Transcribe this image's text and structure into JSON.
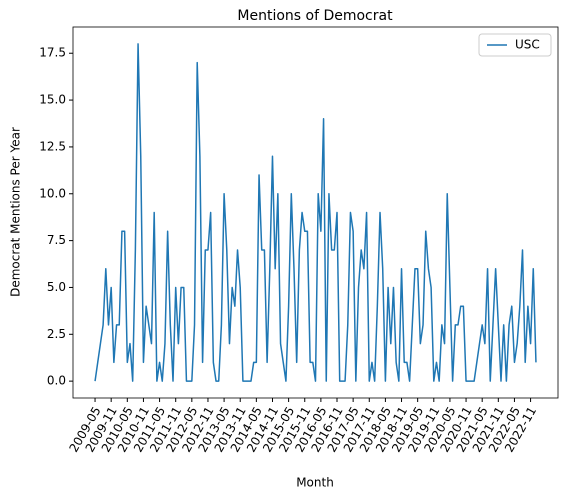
{
  "chart_data": {
    "type": "line",
    "title": "Mentions of Democrat",
    "xlabel": "Month",
    "ylabel": "Democrat Mentions Per Year",
    "categories": [
      "2009-05",
      null,
      null,
      null,
      null,
      null,
      "2009-11",
      null,
      null,
      null,
      null,
      null,
      "2010-05",
      null,
      null,
      null,
      null,
      null,
      "2010-11",
      null,
      null,
      null,
      null,
      null,
      "2011-05",
      null,
      null,
      null,
      null,
      null,
      "2011-11",
      null,
      null,
      null,
      null,
      null,
      "2012-05",
      null,
      null,
      null,
      null,
      null,
      "2012-11",
      null,
      null,
      null,
      null,
      null,
      "2013-05",
      null,
      null,
      null,
      null,
      null,
      "2013-11",
      null,
      null,
      null,
      null,
      null,
      "2014-05",
      null,
      null,
      null,
      null,
      null,
      "2014-11",
      null,
      null,
      null,
      null,
      null,
      "2015-05",
      null,
      null,
      null,
      null,
      null,
      "2015-11",
      null,
      null,
      null,
      null,
      null,
      "2016-05",
      null,
      null,
      null,
      null,
      null,
      "2016-11",
      null,
      null,
      null,
      null,
      null,
      "2017-05",
      null,
      null,
      null,
      null,
      null,
      "2017-11",
      null,
      null,
      null,
      null,
      null,
      "2018-05",
      null,
      null,
      null,
      null,
      null,
      "2018-11",
      null,
      null,
      null,
      null,
      null,
      "2019-05",
      null,
      null,
      null,
      null,
      null,
      "2019-11",
      null,
      null,
      null,
      null,
      null,
      "2020-05",
      null,
      null,
      null,
      null,
      null,
      "2020-11",
      null,
      null,
      null,
      null,
      null,
      "2021-05",
      null,
      null,
      null,
      null,
      null,
      "2021-11",
      null,
      null,
      null,
      null,
      null,
      "2022-05",
      null,
      null,
      null,
      null,
      null,
      "2022-11",
      null,
      null
    ],
    "series": [
      {
        "name": "USC",
        "color": "#1f77b4",
        "values": [
          0,
          1,
          2,
          3,
          6,
          3,
          5,
          1,
          3,
          3,
          8,
          8,
          1,
          2,
          0,
          7,
          18,
          12,
          1,
          4,
          3,
          2,
          9,
          0,
          1,
          0,
          2,
          8,
          3,
          0,
          5,
          2,
          5,
          5,
          0,
          0,
          0,
          3,
          17,
          12,
          1,
          7,
          7,
          9,
          1,
          0,
          0,
          3,
          10,
          7,
          2,
          5,
          4,
          7,
          5,
          0,
          0,
          0,
          0,
          1,
          1,
          11,
          7,
          7,
          1,
          6,
          12,
          6,
          10,
          2,
          1,
          0,
          4,
          10,
          6,
          1,
          7,
          9,
          8,
          8,
          1,
          1,
          0,
          10,
          8,
          14,
          0,
          10,
          7,
          7,
          9,
          0,
          0,
          0,
          3,
          9,
          8,
          0,
          5,
          7,
          6,
          9,
          0,
          1,
          0,
          4,
          9,
          6,
          0,
          5,
          2,
          5,
          1,
          0,
          6,
          1,
          1,
          0,
          3,
          6,
          6,
          2,
          3,
          8,
          6,
          5,
          0,
          1,
          0,
          3,
          2,
          10,
          5,
          0,
          3,
          3,
          4,
          4,
          0,
          0,
          0,
          0,
          1,
          2,
          3,
          2,
          6,
          0,
          3,
          6,
          3,
          0,
          3,
          0,
          3,
          4,
          1,
          2,
          4,
          7,
          1,
          4,
          2,
          6,
          1
        ]
      }
    ],
    "ylim": [
      -0.9,
      18.9
    ],
    "yticks": [
      {
        "value": 0,
        "label": "0.0"
      },
      2.5,
      {
        "value": 5,
        "label": "5.0"
      },
      7.5,
      {
        "value": 10,
        "label": "10.0"
      },
      12.5,
      {
        "value": 15,
        "label": "15.0"
      },
      17.5
    ],
    "legend": "upper right"
  }
}
